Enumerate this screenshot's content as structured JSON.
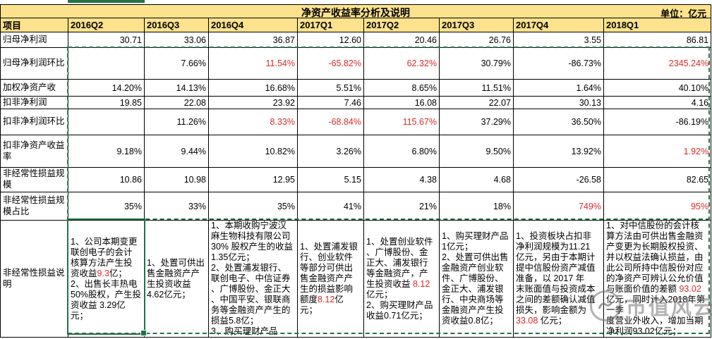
{
  "title": "净资产收益率分析及说明",
  "unit_label": "单位：亿元",
  "colors": {
    "red": "#d92b2b",
    "selection_green": "#217346",
    "band_yellow": "#fce28d"
  },
  "columns": [
    "项目",
    "2016Q2",
    "2016Q3",
    "2016Q4",
    "2017Q1",
    "2017Q2",
    "2017Q3",
    "2017Q4",
    "2018Q1"
  ],
  "rows": [
    {
      "label": "归母净利润",
      "cells": [
        "30.71",
        "33.06",
        "36.87",
        "12.60",
        "20.46",
        "26.76",
        "3.55",
        "86.81"
      ],
      "red": []
    },
    {
      "label": "归母净利润环比",
      "cells": [
        "",
        "7.66%",
        "11.54%",
        "-65.82%",
        "62.32%",
        "30.79%",
        "-86.73%",
        "2345.24%"
      ],
      "red": [
        2,
        3,
        4,
        7
      ]
    },
    {
      "label": "加权净资产收",
      "cells": [
        "14.20%",
        "14.13%",
        "16.68%",
        "5.51%",
        "8.65%",
        "11.51%",
        "1.64%",
        "40.10%"
      ],
      "red": []
    },
    {
      "label": "扣非净利润",
      "cells": [
        "19.85",
        "22.08",
        "23.92",
        "7.46",
        "16.08",
        "22.07",
        "30.13",
        "4.16"
      ],
      "red": []
    },
    {
      "label": "扣非净利润环比",
      "cells": [
        "",
        "11.26%",
        "8.33%",
        "-68.84%",
        "115.67%",
        "37.29%",
        "36.50%",
        "-86.19%"
      ],
      "red": [
        2,
        3,
        4
      ]
    },
    {
      "label": "扣非净资产收益率",
      "cells": [
        "9.18%",
        "9.44%",
        "10.82%",
        "3.26%",
        "6.80%",
        "9.50%",
        "13.92%",
        "1.92%"
      ],
      "red": [
        7
      ]
    },
    {
      "label": "非经常性损益规模",
      "cells": [
        "10.86",
        "10.98",
        "12.95",
        "5.15",
        "4.38",
        "4.68",
        "-26.58",
        "82.65"
      ],
      "red": []
    },
    {
      "label": "非经常性损益规模占比",
      "cells": [
        "35%",
        "33%",
        "35%",
        "41%",
        "21%",
        "18%",
        "749%",
        "95%"
      ],
      "red": [
        6,
        7
      ]
    }
  ],
  "note_row": {
    "label": "非经常性损益说明",
    "cells": [
      {
        "segments": [
          {
            "t": "1、公司本期变更\n联创电子的会计\n核算方法产生投\n资收益"
          },
          {
            "t": "9.3",
            "red": true
          },
          {
            "t": "亿；\n2、出售长丰热电\n50%股权，产生投\n资收益 3.29亿\n元；"
          }
        ]
      },
      {
        "segments": [
          {
            "t": "1、处置可供出\n售金融资产产\n生投资收益\n4.62亿元；"
          }
        ]
      },
      {
        "segments": [
          {
            "t": "1、本期收购宁波汉\n麻生物科技有限公司\n30% 股权产生的收益\n1.35亿元；\n2、处置浦发银行、\n联创电子、中信证券\n、广博股份、金正大\n、中国平安、银联商\n务等金融资产产生的\n损益5.8亿；\n3、购买理财产品"
          }
        ]
      },
      {
        "segments": [
          {
            "t": "1、处置浦发银\n行、创业软件\n等部分可供出\n售金融资产产\n生的损益影响\n额度"
          },
          {
            "t": "8.12",
            "red": true
          },
          {
            "t": "亿\n元；"
          }
        ]
      },
      {
        "segments": [
          {
            "t": "1、处置创业软件\n、广博股份、金\n正大、浦发银行\n等金融资产，产\n生投资收益 "
          },
          {
            "t": "8.12",
            "red": true
          },
          {
            "t": "\n亿元；\n2、购买理财产品\n收益0.71亿元；"
          }
        ]
      },
      {
        "segments": [
          {
            "t": "1、购买理财产品\n1亿元；\n2、处置可供出售\n金融资产创业软\n件、广博股份、\n金正大、浦发银\n行、中央商场等\n金融资产产生投\n资收益0.8亿；"
          }
        ]
      },
      {
        "segments": [
          {
            "t": "1、投资板块占扣非\n净利润规模为11.21\n亿元，另由于本期计\n提中信股份资产减值\n准备，以 2017 年\n末账面值与投资成本\n之间的差额确认减值\n损失，影响金额为\n"
          },
          {
            "t": "33.08",
            "red": true
          },
          {
            "t": " 亿元；"
          }
        ]
      },
      {
        "segments": [
          {
            "t": "1、对中信股份的会计核\n算方法由可供出售金融资\n产变更为长期股权投资、\n并以权益法确认损益，由\n此公司所持中信股份对应\n的净资产可辨认公允价值\n与账面价值的差额 "
          },
          {
            "t": "93.02",
            "red": true
          },
          {
            "t": "\n亿元，同时计入2018年第一季\n度营业外收入，增加当期\n净利润93.02亿元；"
          }
        ]
      }
    ]
  },
  "watermark": {
    "logo": "wind-logo",
    "text": "市值风云"
  }
}
